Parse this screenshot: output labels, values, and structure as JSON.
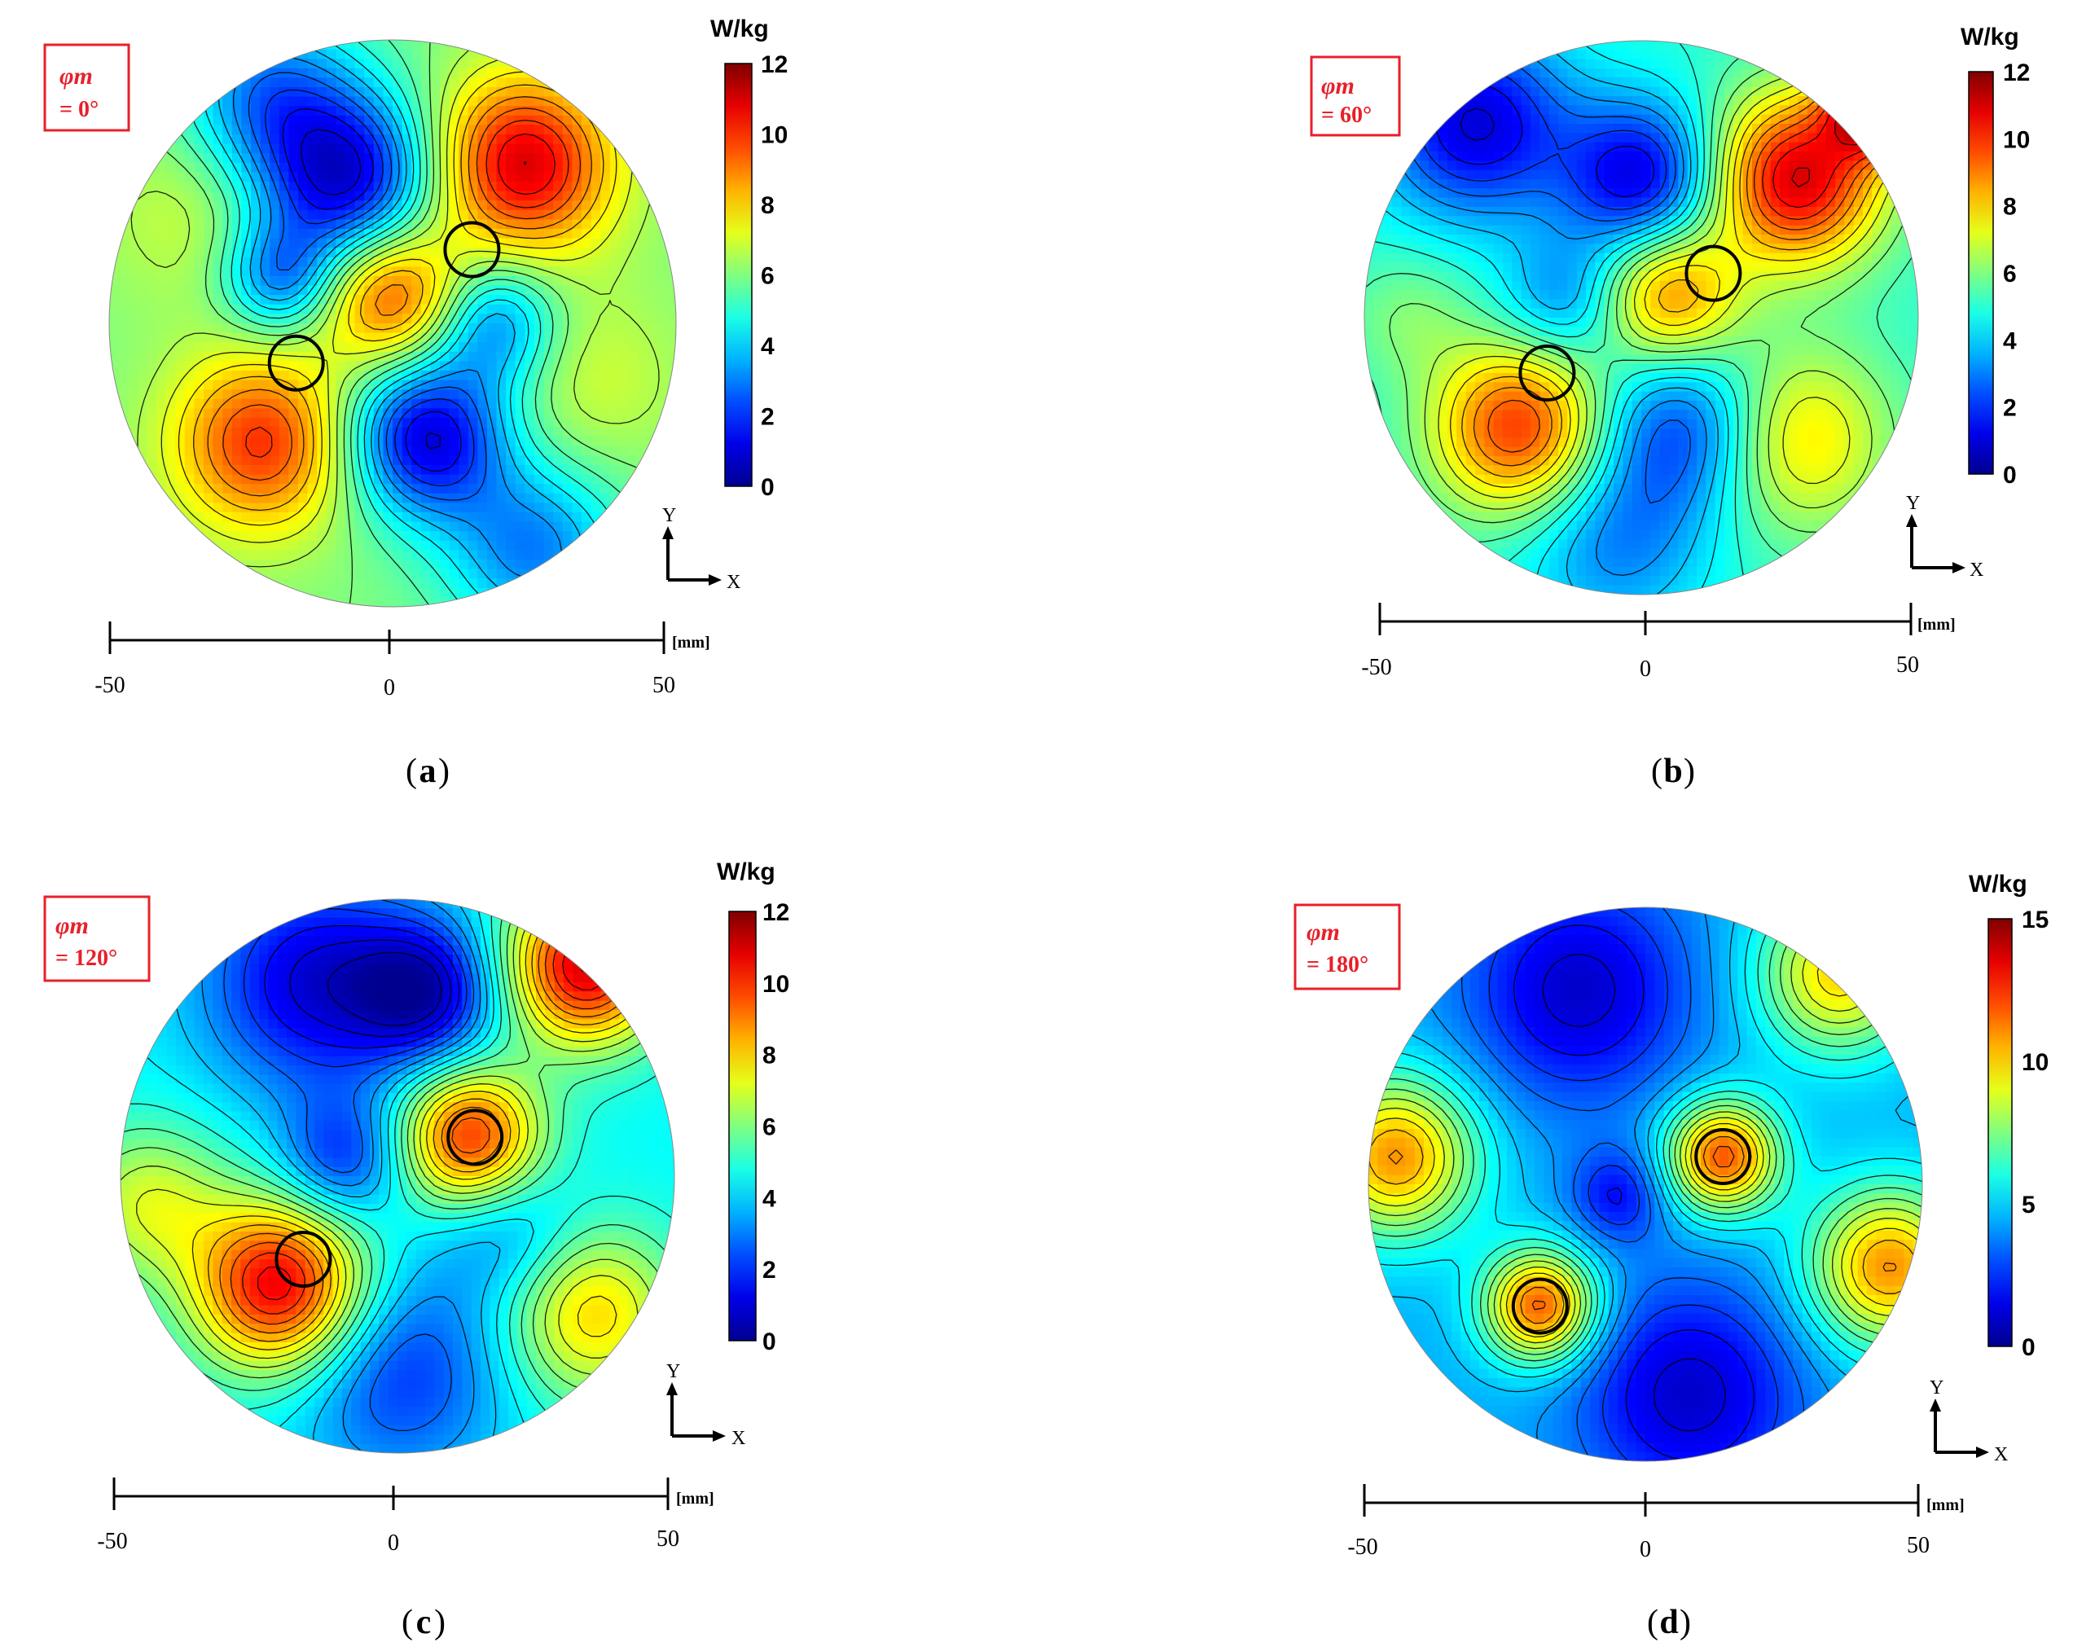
{
  "chart_data": [
    {
      "type": "heatmap",
      "panel_label": "a",
      "angle_symbol": "φm",
      "angle_value": "= 0°",
      "colorbar": {
        "unit": "W/kg",
        "ticks": [
          "0",
          "2",
          "4",
          "6",
          "8",
          "10",
          "12"
        ],
        "range": [
          0,
          12
        ]
      },
      "scale_bar": {
        "ticks": [
          "-50",
          "0",
          "50"
        ],
        "unit": "[mm]",
        "range": [
          -50,
          50
        ]
      },
      "axes": {
        "x_label": "X",
        "y_label": "Y"
      },
      "grid": false,
      "base_level": 6,
      "hotspots": [
        {
          "x": 23,
          "y": 28,
          "value": 11,
          "spread": 11
        },
        {
          "x": 0,
          "y": 5,
          "value": 10,
          "spread": 9
        },
        {
          "x": -23,
          "y": -21,
          "value": 10,
          "spread": 11
        },
        {
          "x": -34,
          "y": 20,
          "value": 7,
          "spread": 12
        },
        {
          "x": 34,
          "y": -10,
          "value": 7,
          "spread": 12
        }
      ],
      "coldspots": [
        {
          "x": -8,
          "y": 25,
          "value": 1,
          "spread": 11
        },
        {
          "x": 6,
          "y": -20,
          "value": 1,
          "spread": 10
        },
        {
          "x": -22,
          "y": 40,
          "value": 3,
          "spread": 11
        },
        {
          "x": 25,
          "y": -40,
          "value": 3,
          "spread": 11
        },
        {
          "x": -20,
          "y": 8,
          "value": 3,
          "spread": 7
        },
        {
          "x": 18,
          "y": 0,
          "value": 3,
          "spread": 8
        }
      ],
      "circles": [
        {
          "x": 14,
          "y": 13
        },
        {
          "x": -17,
          "y": -7
        }
      ]
    },
    {
      "type": "heatmap",
      "panel_label": "b",
      "angle_symbol": "φm",
      "angle_value": "= 60°",
      "colorbar": {
        "unit": "W/kg",
        "ticks": [
          "0",
          "2",
          "4",
          "6",
          "8",
          "10",
          "12"
        ],
        "range": [
          0,
          12
        ]
      },
      "scale_bar": {
        "ticks": [
          "-50",
          "0",
          "50"
        ],
        "unit": "[mm]",
        "range": [
          -50,
          50
        ]
      },
      "axes": {
        "x_label": "X",
        "y_label": "Y"
      },
      "grid": false,
      "base_level": 5,
      "hotspots": [
        {
          "x": 28,
          "y": 25,
          "value": 11,
          "spread": 11
        },
        {
          "x": 5,
          "y": 4,
          "value": 9,
          "spread": 9
        },
        {
          "x": -22,
          "y": -20,
          "value": 10,
          "spread": 11
        },
        {
          "x": 28,
          "y": -22,
          "value": 8,
          "spread": 12
        },
        {
          "x": 42,
          "y": 38,
          "value": 11,
          "spread": 6
        },
        {
          "x": -42,
          "y": 0,
          "value": 6,
          "spread": 8
        }
      ],
      "coldspots": [
        {
          "x": -30,
          "y": 35,
          "value": 1,
          "spread": 12
        },
        {
          "x": 0,
          "y": 25,
          "value": 1,
          "spread": 10
        },
        {
          "x": 8,
          "y": -20,
          "value": 2,
          "spread": 11
        },
        {
          "x": -14,
          "y": 3,
          "value": 3,
          "spread": 8
        },
        {
          "x": -5,
          "y": -40,
          "value": 3,
          "spread": 12
        }
      ],
      "circles": [
        {
          "x": 13,
          "y": 8
        },
        {
          "x": -17,
          "y": -10
        }
      ]
    },
    {
      "type": "heatmap",
      "panel_label": "c",
      "angle_symbol": "φm",
      "angle_value": "= 120°",
      "colorbar": {
        "unit": "W/kg",
        "ticks": [
          "0",
          "2",
          "4",
          "6",
          "8",
          "10",
          "12"
        ],
        "range": [
          0,
          12
        ]
      },
      "scale_bar": {
        "ticks": [
          "-50",
          "0",
          "50"
        ],
        "unit": "[mm]",
        "range": [
          -50,
          50
        ]
      },
      "axes": {
        "x_label": "X",
        "y_label": "Y"
      },
      "grid": false,
      "base_level": 4.5,
      "hotspots": [
        {
          "x": 13,
          "y": 7,
          "value": 10,
          "spread": 9
        },
        {
          "x": -21,
          "y": -20,
          "value": 11,
          "spread": 11
        },
        {
          "x": 35,
          "y": -25,
          "value": 8,
          "spread": 11
        },
        {
          "x": 34,
          "y": 38,
          "value": 11,
          "spread": 10
        },
        {
          "x": -45,
          "y": -5,
          "value": 7,
          "spread": 10
        }
      ],
      "coldspots": [
        {
          "x": -15,
          "y": 35,
          "value": 1,
          "spread": 14
        },
        {
          "x": 5,
          "y": 33,
          "value": 1,
          "spread": 9
        },
        {
          "x": -10,
          "y": 3,
          "value": 2,
          "spread": 8
        },
        {
          "x": 0,
          "y": -35,
          "value": 2,
          "spread": 14
        },
        {
          "x": 20,
          "y": -10,
          "value": 3,
          "spread": 9
        }
      ],
      "circles": [
        {
          "x": 14,
          "y": 7
        },
        {
          "x": -17,
          "y": -15
        }
      ]
    },
    {
      "type": "heatmap",
      "panel_label": "d",
      "angle_symbol": "φm",
      "angle_value": "= 180°",
      "colorbar": {
        "unit": "W/kg",
        "ticks": [
          "0",
          "5",
          "10",
          "15"
        ],
        "range": [
          0,
          15
        ]
      },
      "scale_bar": {
        "ticks": [
          "-50",
          "0",
          "50"
        ],
        "unit": "[mm]",
        "range": [
          -50,
          50
        ]
      },
      "axes": {
        "x_label": "X",
        "y_label": "Y"
      },
      "grid": false,
      "base_level": 4.5,
      "hotspots": [
        {
          "x": 14,
          "y": 5,
          "value": 12,
          "spread": 7
        },
        {
          "x": -19,
          "y": -22,
          "value": 12,
          "spread": 7
        },
        {
          "x": -45,
          "y": 5,
          "value": 11,
          "spread": 10
        },
        {
          "x": 44,
          "y": -15,
          "value": 11,
          "spread": 10
        },
        {
          "x": 35,
          "y": 38,
          "value": 10,
          "spread": 10
        }
      ],
      "coldspots": [
        {
          "x": -12,
          "y": 35,
          "value": 1,
          "spread": 14
        },
        {
          "x": 8,
          "y": -38,
          "value": 1,
          "spread": 14
        },
        {
          "x": -5,
          "y": -2,
          "value": 2,
          "spread": 6
        }
      ],
      "circles": [
        {
          "x": 14,
          "y": 5
        },
        {
          "x": -19,
          "y": -22
        }
      ]
    }
  ]
}
